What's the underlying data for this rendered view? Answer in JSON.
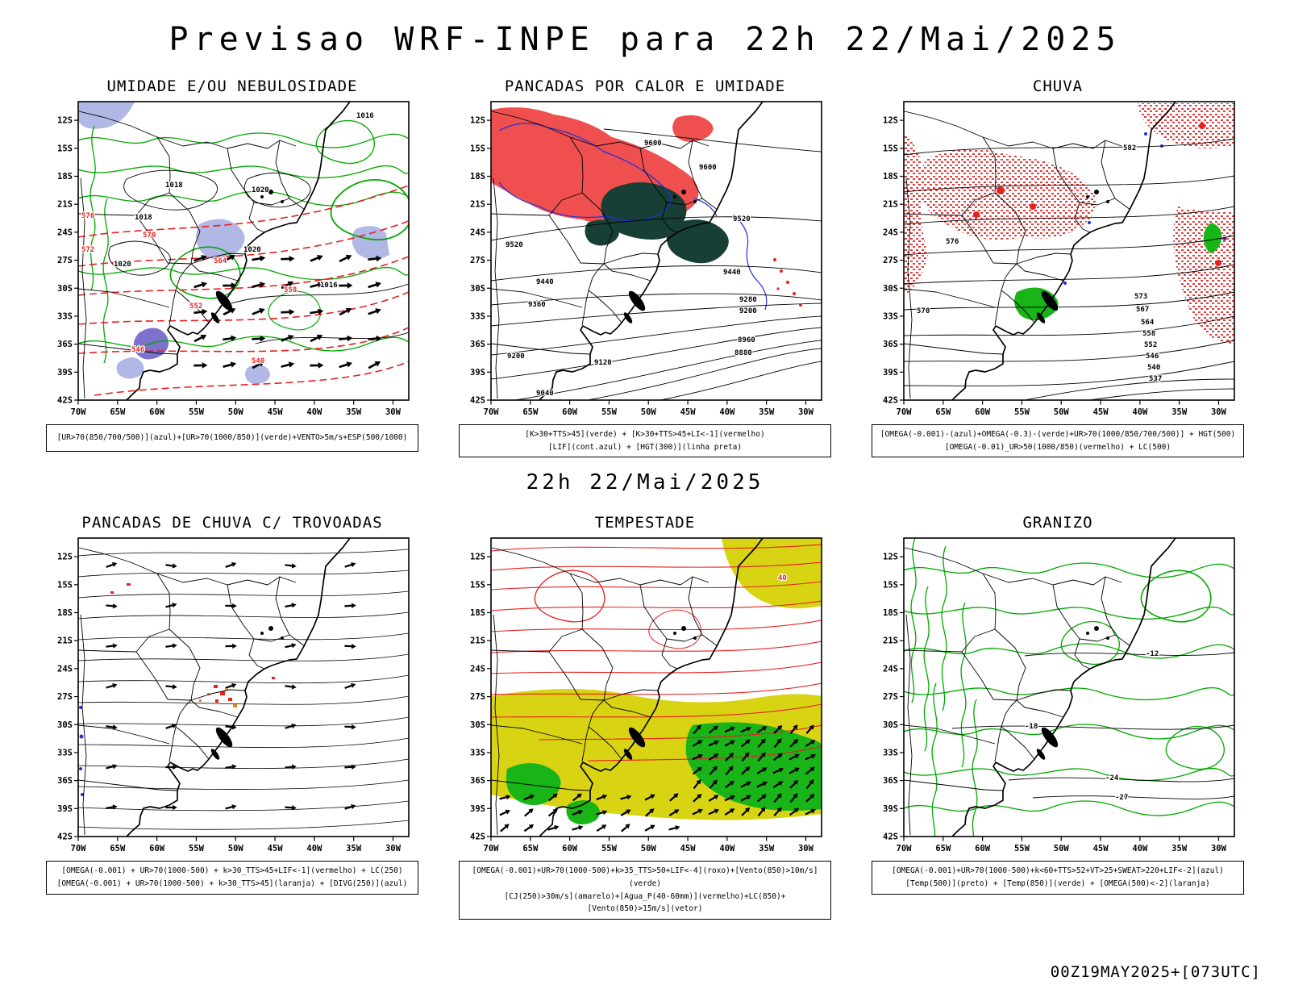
{
  "page": {
    "title": "Previsao WRF-INPE  para 22h 22/Mai/2025",
    "mid_caption": "22h 22/Mai/2025",
    "footer": "00Z19MAY2025+[073UTC]"
  },
  "axes": {
    "lat_labels": [
      "12S",
      "15S",
      "18S",
      "21S",
      "24S",
      "27S",
      "30S",
      "33S",
      "36S",
      "39S",
      "42S"
    ],
    "lon_labels": [
      "70W",
      "65W",
      "60W",
      "55W",
      "50W",
      "45W",
      "40W",
      "35W",
      "30W"
    ]
  },
  "colors": {
    "green_contour": "#00a800",
    "red_contour": "#e82020",
    "blue_contour": "#2030d8",
    "red_fill": "#ef4f4f",
    "teal_fill": "#173f35",
    "lavender_fill": "#a9b0e2",
    "purple_fill": "#7e72cc",
    "yellow_fill": "#d8d414",
    "green_fill": "#18b418",
    "orange": "#f08020"
  },
  "panels": [
    {
      "id": "umidade",
      "title": "UMIDADE E/OU NEBULOSIDADE",
      "captions": [
        "[UR>70(850/700/500)](azul)+[UR>70(1000/850)](verde)+VENTO>5m/s+ESP(500/1000)"
      ],
      "map_labels": [
        "1016",
        "1018",
        "1020",
        "1018",
        "1020",
        "1020",
        "1016",
        "570",
        "564",
        "558",
        "552",
        "546",
        "540",
        "576",
        "572"
      ]
    },
    {
      "id": "pancadas-calor",
      "title": "PANCADAS POR CALOR E UMIDADE",
      "captions": [
        "[K>30+TTS>45](verde) + [K>30+TTS>45+LI<-1](vermelho)",
        "[LIF](cont.azul) + [HGT(300)](linha preta)"
      ],
      "map_labels": [
        "9600",
        "9600",
        "9520",
        "9520",
        "9440",
        "9440",
        "9360",
        "9280",
        "9200",
        "9200",
        "9120",
        "9040",
        "8960",
        "8880"
      ]
    },
    {
      "id": "chuva",
      "title": "CHUVA",
      "captions": [
        "[OMEGA(-0.001)-(azul)+OMEGA(-0.3)-(verde)+UR>70(1000/850/700/500)] + HGT(500)",
        "[OMEGA(-0.01)_UR>50(1000/850)(vermelho) + LC(500)"
      ],
      "map_labels": [
        "582",
        "576",
        "573",
        "570",
        "567",
        "564",
        "558",
        "552",
        "546",
        "540",
        "537"
      ]
    },
    {
      "id": "trovoadas",
      "title": "PANCADAS DE CHUVA C/ TROVOADAS",
      "captions": [
        "[OMEGA(-0.001) + UR>70(1000-500) + k>30_TTS>45+LIF<-1](vermelho) + LC(250)",
        "[OMEGA(-0.001) + UR>70(1000-500) + k>30_TTS>45](laranja) + [DIVG(250)](azul)"
      ],
      "map_labels": []
    },
    {
      "id": "tempestade",
      "title": "TEMPESTADE",
      "captions": [
        "[OMEGA(-0.001)+UR>70(1000-500)+k>35_TTS>50+LIF<-4](roxo)+[Vento(850)>10m/s](verde)",
        "[CJ(250)>30m/s](amarelo)+[Agua_P(40-60mm)](vermelho)+LC(850)+[Vento(850)>15m/s](vetor)"
      ],
      "map_labels": [
        "40"
      ]
    },
    {
      "id": "granizo",
      "title": "GRANIZO",
      "captions": [
        "[OMEGA(-0.001)+UR>70(1000-500)+k<60+TTS>52+VT>25+SWEAT>220+LIF<-2](azul)",
        "[Temp(500)](preto) + [Temp(850)](verde) + [OMEGA(500)<-2](laranja)"
      ],
      "map_labels": [
        "-12",
        "-18",
        "-24",
        "-27"
      ]
    }
  ]
}
